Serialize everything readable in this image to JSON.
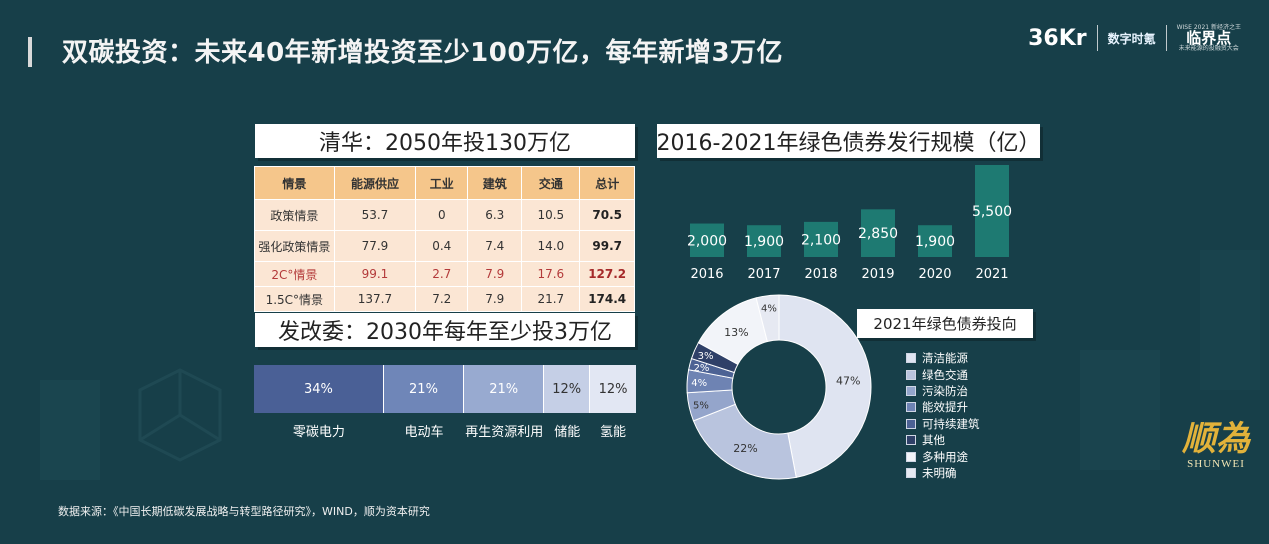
{
  "title": "双碳投资：未来40年新增投资至少100万亿，每年新增3万亿",
  "logos": {
    "kr": "36Kr",
    "digital": "数字时氪",
    "lj_top": "WISE 2021 新经济之王",
    "lj_main": "临界点",
    "lj_sub": "未来能源的投融资大会"
  },
  "qinghua": {
    "header": "清华：2050年投130万亿",
    "columns": [
      "情景",
      "能源供应",
      "工业",
      "建筑",
      "交通",
      "总计"
    ],
    "rows": [
      [
        "政策情景",
        "53.7",
        "0",
        "6.3",
        "10.5",
        "70.5"
      ],
      [
        "强化政策情景",
        "77.9",
        "0.4",
        "7.4",
        "14.0",
        "99.7"
      ],
      [
        "2C°情景",
        "99.1",
        "2.7",
        "7.9",
        "17.6",
        "127.2"
      ],
      [
        "1.5C°情景",
        "137.7",
        "7.2",
        "7.9",
        "21.7",
        "174.4"
      ]
    ]
  },
  "fgw": {
    "header": "发改委：2030年每年至少投3万亿",
    "segments": [
      {
        "value": 34,
        "label": "34%",
        "name": "零碳电力",
        "color": "#4a6096",
        "text_color": "#ffffff"
      },
      {
        "value": 21,
        "label": "21%",
        "name": "电动车",
        "color": "#6f86b8",
        "text_color": "#ffffff"
      },
      {
        "value": 21,
        "label": "21%",
        "name": "再生资源利用",
        "color": "#98aad0",
        "text_color": "#ffffff"
      },
      {
        "value": 12,
        "label": "12%",
        "name": "储能",
        "color": "#c5cfe6",
        "text_color": "#333333"
      },
      {
        "value": 12,
        "label": "12%",
        "name": "氢能",
        "color": "#e2e7f3",
        "text_color": "#333333"
      }
    ]
  },
  "chart_data": [
    {
      "type": "bar",
      "title": "2016-2021年绿色债券发行规模（亿）",
      "categories": [
        "2016",
        "2017",
        "2018",
        "2019",
        "2020",
        "2021"
      ],
      "values": [
        2000,
        1900,
        2100,
        2850,
        1900,
        5500
      ],
      "value_labels": [
        "2,000",
        "1,900",
        "2,100",
        "2,850",
        "1,900",
        "5,500"
      ],
      "color": "#1e7a72"
    },
    {
      "type": "pie",
      "title": "2021年绿色债券投向",
      "labels": [
        "清洁能源",
        "绿色交通",
        "污染防治",
        "能效提升",
        "可持续建筑",
        "其他",
        "多种用途",
        "未明确"
      ],
      "values": [
        47,
        22,
        5,
        4,
        2,
        3,
        13,
        4
      ],
      "value_labels": [
        "47%",
        "22%",
        "5%",
        "4%",
        "2%",
        "3%",
        "13%",
        "4%"
      ],
      "colors": [
        "#dfe4f1",
        "#b9c4de",
        "#94a5cb",
        "#6e83b3",
        "#4c6294",
        "#2f4068",
        "#f2f4f9",
        "#e6e9f2"
      ]
    }
  ],
  "footnote": "数据来源：《中国长期低碳发展战略与转型路径研究》，WIND，顺为资本研究",
  "brand": {
    "cn": "顺為",
    "en": "SHUNWEI"
  }
}
